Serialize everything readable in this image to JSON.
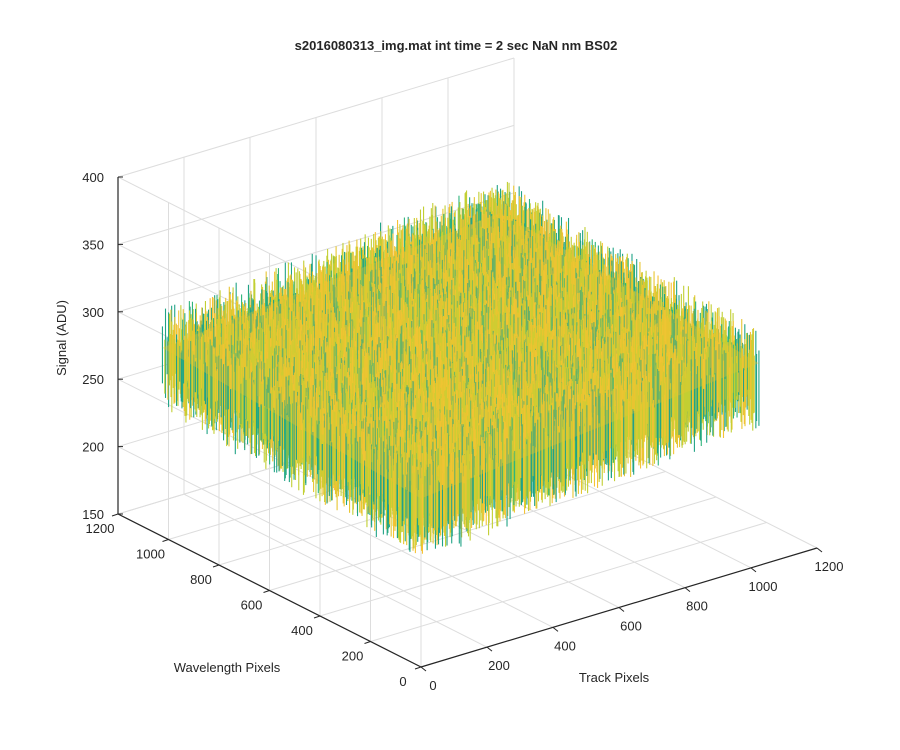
{
  "chart_data": {
    "type": "surface",
    "title": "s2016080313_img.mat int time = 2 sec  NaN nm BS02",
    "xlabel": "Track Pixels",
    "ylabel": "Wavelength Pixels",
    "zlabel": "Signal (ADU)",
    "xlim": [
      0,
      1200
    ],
    "ylim": [
      0,
      1200
    ],
    "zlim": [
      150,
      400
    ],
    "xticks": [
      "0",
      "200",
      "400",
      "600",
      "800",
      "1000",
      "1200"
    ],
    "yticks": [
      "0",
      "200",
      "400",
      "600",
      "800",
      "1000",
      "1200"
    ],
    "zticks": [
      "150",
      "200",
      "250",
      "300",
      "350",
      "400"
    ],
    "grid": true,
    "colormap": [
      "#20A386",
      "#2FB47C",
      "#C2CF33",
      "#E8C531",
      "#F5C335"
    ],
    "surface_extent": {
      "x": [
        0,
        1024
      ],
      "y": [
        0,
        1024
      ]
    },
    "corner_signal": {
      "x0_y0": 265,
      "x1024_y0": 290,
      "x0_y1024": 280,
      "x1024_y1024": 305
    },
    "noise_amplitude": 35
  }
}
